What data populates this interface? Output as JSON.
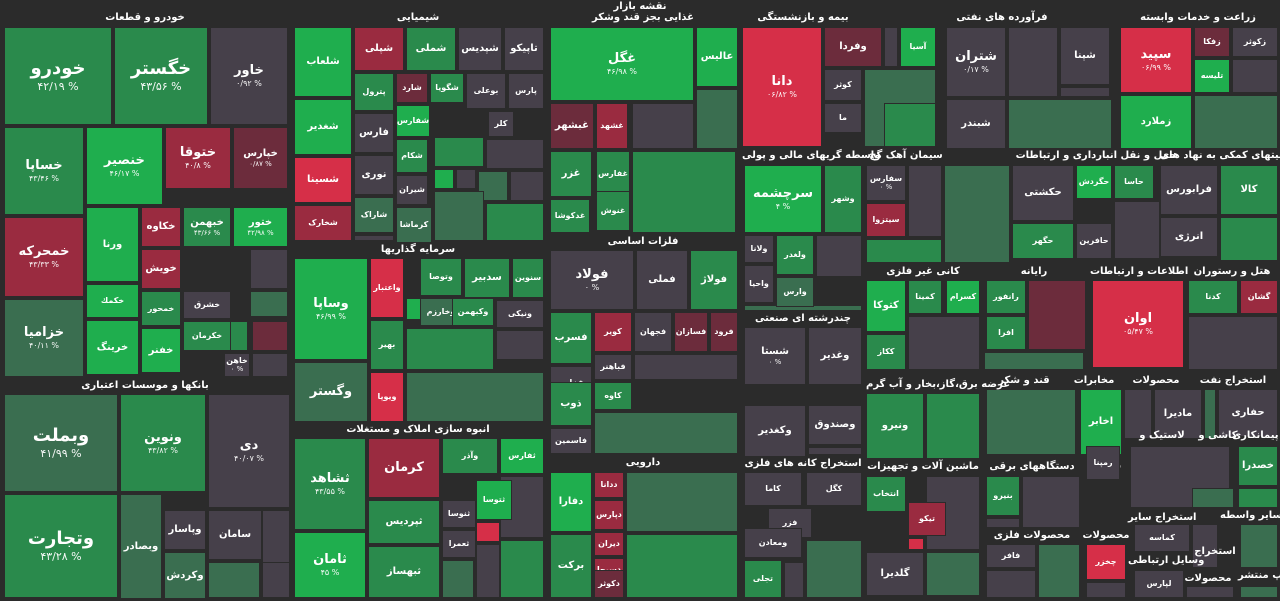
{
  "title": "نقشه بازار",
  "colors": {
    "strong_pos": "#1fae4e",
    "pos": "#2a8a4c",
    "mild_pos": "#3a6e50",
    "neutral": "#46404a",
    "mild_neg": "#6c2c3c",
    "neg": "#9a2b40",
    "strong_neg": "#d62f48",
    "background": "#2b2b2b"
  },
  "chart_data": {
    "type": "treemap",
    "title": "نقشه بازار",
    "sectors": [
      {
        "name": "خودرو و قطعات",
        "tiles": [
          {
            "n": "خودرو",
            "c": "۴۲/۱۹ %",
            "s": 2
          },
          {
            "n": "خگستر",
            "c": "۴۳/۵۶ %",
            "s": 2
          },
          {
            "n": "خاور",
            "c": "۰/۹۲ %",
            "s": 0
          },
          {
            "n": "خساپا",
            "c": "۴۳/۴۶ %",
            "s": 2
          },
          {
            "n": "خنصير",
            "c": "۴۶/۱۷ %",
            "s": 3
          },
          {
            "n": "ختوقا",
            "c": "۴۰/۸ %",
            "s": -2
          },
          {
            "n": "خپارس",
            "c": "۰/۸۷ %",
            "s": -1
          },
          {
            "n": "خمحركه",
            "c": "۴۳/۳۳ %",
            "s": -2
          },
          {
            "n": "ورنا",
            "c": "",
            "s": 3
          },
          {
            "n": "خكاوه",
            "c": "",
            "s": -2
          },
          {
            "n": "خبهمن",
            "c": "۴۳/۶۶ %",
            "s": 2
          },
          {
            "n": "ختور",
            "c": "۴۲/۹۸ %",
            "s": 3
          },
          {
            "n": "خويش",
            "c": "",
            "s": -2
          },
          {
            "n": "خزامیا",
            "c": "۴۰/۱۱ %",
            "s": 1
          },
          {
            "n": "خكمك",
            "c": "",
            "s": 3
          },
          {
            "n": "خرينگ",
            "c": "",
            "s": 3
          },
          {
            "n": "خمحور",
            "c": "",
            "s": 2
          },
          {
            "n": "خفنر",
            "c": "",
            "s": 3
          },
          {
            "n": "خشرق",
            "c": "",
            "s": 0
          },
          {
            "n": "خكرمان",
            "c": "",
            "s": 2
          },
          {
            "n": "خاهن",
            "c": "۰ %",
            "s": 0
          }
        ]
      },
      {
        "name": "بانکها و موسسات اعتباری",
        "tiles": [
          {
            "n": "وبملت",
            "c": "۴۱/۹۹ %",
            "s": 1
          },
          {
            "n": "ونوين",
            "c": "۴۳/۸۲ %",
            "s": 2
          },
          {
            "n": "دی",
            "c": "۴۰/۰۷ %",
            "s": 0
          },
          {
            "n": "وتجارت",
            "c": "۴۳/۲۸ %",
            "s": 2
          },
          {
            "n": "وبصادر",
            "c": "",
            "s": 1
          },
          {
            "n": "وپاسار",
            "c": "",
            "s": 0
          },
          {
            "n": "وكردش",
            "c": "",
            "s": 1
          },
          {
            "n": "سامان",
            "c": "",
            "s": 0
          }
        ]
      },
      {
        "name": "شیمیایی",
        "tiles": [
          {
            "n": "شلعاب",
            "c": "",
            "s": 3
          },
          {
            "n": "شپلی",
            "c": "",
            "s": -2
          },
          {
            "n": "شملی",
            "c": "",
            "s": 2
          },
          {
            "n": "شپديس",
            "c": "",
            "s": 0
          },
          {
            "n": "تاپيكو",
            "c": "",
            "s": 0
          },
          {
            "n": "پترول",
            "c": "",
            "s": 2
          },
          {
            "n": "شارد",
            "c": "",
            "s": -1
          },
          {
            "n": "شگويا",
            "c": "",
            "s": 2
          },
          {
            "n": "بوعلی",
            "c": "",
            "s": 0
          },
          {
            "n": "پارس",
            "c": "",
            "s": 0
          },
          {
            "n": "شغدير",
            "c": "",
            "s": 3
          },
          {
            "n": "شفارس",
            "c": "",
            "s": 3
          },
          {
            "n": "كلر",
            "c": "",
            "s": 0
          },
          {
            "n": "فارس",
            "c": "",
            "s": 0
          },
          {
            "n": "شسينا",
            "c": "",
            "s": -3
          },
          {
            "n": "شكام",
            "c": "",
            "s": 2
          },
          {
            "n": "نوری",
            "c": "",
            "s": 0
          },
          {
            "n": "شيران",
            "c": "",
            "s": 0
          },
          {
            "n": "شخارک",
            "c": "",
            "s": -2
          },
          {
            "n": "شاراک",
            "c": "",
            "s": 1
          },
          {
            "n": "كرماشا",
            "c": "",
            "s": 1
          }
        ]
      },
      {
        "name": "سرمایه گذاریها",
        "tiles": [
          {
            "n": "وساپا",
            "c": "۴۶/۹۹ %",
            "s": 3
          },
          {
            "n": "واعتبار",
            "c": "",
            "s": -3
          },
          {
            "n": "وتوصا",
            "c": "",
            "s": 2
          },
          {
            "n": "سدبير",
            "c": "",
            "s": 2
          },
          {
            "n": "سنوين",
            "c": "",
            "s": 2
          },
          {
            "n": "وخارزم",
            "c": "",
            "s": 1
          },
          {
            "n": "وكبهمن",
            "c": "",
            "s": 2
          },
          {
            "n": "ونيكی",
            "c": "",
            "s": 0
          },
          {
            "n": "بهير",
            "c": "",
            "s": 2
          },
          {
            "n": "وگستر",
            "c": "",
            "s": 1
          },
          {
            "n": "ويوپا",
            "c": "",
            "s": -3
          }
        ]
      },
      {
        "name": "انبوه سازی املاک و مستغلات",
        "tiles": [
          {
            "n": "ثشاهد",
            "c": "۴۳/۵۵ %",
            "s": 2
          },
          {
            "n": "كرمان",
            "c": "",
            "s": -2
          },
          {
            "n": "وآذر",
            "c": "",
            "s": 2
          },
          {
            "n": "ثفارس",
            "c": "",
            "s": 3
          },
          {
            "n": "ثپرديس",
            "c": "",
            "s": 2
          },
          {
            "n": "ثتوسا",
            "c": "",
            "s": 3
          },
          {
            "n": "ثنوسا",
            "c": "",
            "s": 0
          },
          {
            "n": "ثعمرا",
            "c": "",
            "s": 0
          },
          {
            "n": "ثامان",
            "c": "۴۵ %",
            "s": 3
          },
          {
            "n": "ثبهساز",
            "c": "",
            "s": 2
          }
        ]
      },
      {
        "name": "غذایی بجز قند وشکر",
        "tiles": [
          {
            "n": "غگل",
            "c": "۴۶/۹۸ %",
            "s": 3
          },
          {
            "n": "عاليس",
            "c": "",
            "s": 3
          },
          {
            "n": "غبشهر",
            "c": "",
            "s": -1
          },
          {
            "n": "غشهد",
            "c": "",
            "s": -2
          },
          {
            "n": "غزر",
            "c": "",
            "s": 2
          },
          {
            "n": "غفارس",
            "c": "",
            "s": 2
          },
          {
            "n": "غدكوشا",
            "c": "",
            "s": 2
          },
          {
            "n": "غنوش",
            "c": "",
            "s": 2
          }
        ]
      },
      {
        "name": "فلزات اساسی",
        "tiles": [
          {
            "n": "فولاد",
            "c": "۰ %",
            "s": 0
          },
          {
            "n": "فملی",
            "c": "",
            "s": 0
          },
          {
            "n": "فولاژ",
            "c": "",
            "s": 2
          },
          {
            "n": "فسرب",
            "c": "",
            "s": 2
          },
          {
            "n": "كوير",
            "c": "",
            "s": -2
          },
          {
            "n": "فجهان",
            "c": "",
            "s": 0
          },
          {
            "n": "فسازان",
            "c": "",
            "s": -1
          },
          {
            "n": "فرود",
            "c": "",
            "s": -1
          },
          {
            "n": "فباهنر",
            "c": "",
            "s": 0
          },
          {
            "n": "فخاس",
            "c": "",
            "s": 0
          },
          {
            "n": "ذوب",
            "c": "",
            "s": 2
          },
          {
            "n": "كاوه",
            "c": "",
            "s": 2
          },
          {
            "n": "فاسمين",
            "c": "",
            "s": 0
          }
        ]
      },
      {
        "name": "دارویی",
        "tiles": [
          {
            "n": "دفارا",
            "c": "",
            "s": 3
          },
          {
            "n": "ددانا",
            "c": "",
            "s": -2
          },
          {
            "n": "دپارس",
            "c": "",
            "s": -2
          },
          {
            "n": "ديران",
            "c": "",
            "s": -2
          },
          {
            "n": "دسبحا",
            "c": "",
            "s": -2
          },
          {
            "n": "بركت",
            "c": "",
            "s": 2
          },
          {
            "n": "دكوثر",
            "c": "",
            "s": -1
          }
        ]
      },
      {
        "name": "بیمه و بازنشستگی",
        "tiles": [
          {
            "n": "دانا",
            "c": "۰۶/۸۲ %",
            "s": -3
          },
          {
            "n": "وفردا",
            "c": "",
            "s": -1
          },
          {
            "n": "آسيا",
            "c": "",
            "s": 3
          },
          {
            "n": "كوثر",
            "c": "",
            "s": 0
          },
          {
            "n": "ما",
            "c": "",
            "s": 0
          }
        ]
      },
      {
        "name": "واسطه گریهای مالی و پولی",
        "tiles": [
          {
            "n": "سرچشمه",
            "c": "۴ %",
            "s": 3
          },
          {
            "n": "وشهر",
            "c": "",
            "s": 2
          },
          {
            "n": "ولانا",
            "c": "",
            "s": 0
          },
          {
            "n": "ولغدر",
            "c": "",
            "s": 2
          },
          {
            "n": "واحيا",
            "c": "",
            "s": 0
          },
          {
            "n": "وارس",
            "c": "",
            "s": 1
          }
        ]
      },
      {
        "name": "سیمان آهک گچ",
        "tiles": [
          {
            "n": "سفارس",
            "c": "۰ %",
            "s": 0
          },
          {
            "n": "سيتزوا",
            "c": "",
            "s": -2
          }
        ]
      },
      {
        "name": "فرآورده های نفتی",
        "tiles": [
          {
            "n": "شتران",
            "c": "۰/۱۷ %",
            "s": 0
          },
          {
            "n": "شپنا",
            "c": "",
            "s": 0
          },
          {
            "n": "شبندر",
            "c": "",
            "s": 0
          }
        ]
      },
      {
        "name": "زراعت و خدمات وابسته",
        "tiles": [
          {
            "n": "سپيد",
            "c": "۰۶/۹۹ %",
            "s": -3
          },
          {
            "n": "زفكا",
            "c": "",
            "s": -1
          },
          {
            "n": "زكوثر",
            "c": "",
            "s": 0
          },
          {
            "n": "زملارد",
            "c": "",
            "s": 3
          },
          {
            "n": "تليسه",
            "c": "",
            "s": 3
          }
        ]
      },
      {
        "name": "حمل و نقل انبارداری و ارتباطات",
        "tiles": [
          {
            "n": "حكشتی",
            "c": "",
            "s": 0
          },
          {
            "n": "حگردش",
            "c": "",
            "s": 3
          },
          {
            "n": "حاسا",
            "c": "",
            "s": 2
          },
          {
            "n": "حگهر",
            "c": "",
            "s": 2
          },
          {
            "n": "حافرين",
            "c": "",
            "s": 0
          }
        ]
      },
      {
        "name": "فعالیتهای کمکی به نهاد های",
        "tiles": [
          {
            "n": "فرابورس",
            "c": "",
            "s": 0
          },
          {
            "n": "كالا",
            "c": "",
            "s": 2
          },
          {
            "n": "انرژی",
            "c": "",
            "s": 0
          }
        ]
      },
      {
        "name": "کانی غیر فلزی",
        "tiles": [
          {
            "n": "كتوكا",
            "c": "",
            "s": 3
          },
          {
            "n": "كمينا",
            "c": "",
            "s": 2
          },
          {
            "n": "كسرام",
            "c": "",
            "s": 3
          },
          {
            "n": "ككاز",
            "c": "",
            "s": 2
          }
        ]
      },
      {
        "name": "رایانه",
        "tiles": [
          {
            "n": "رانفور",
            "c": "",
            "s": 2
          },
          {
            "n": "افرا",
            "c": "",
            "s": 2
          }
        ]
      },
      {
        "name": "اطلاعات و ارتباطات",
        "tiles": [
          {
            "n": "اوان",
            "c": "۰۵/۴۷ %",
            "s": -3
          }
        ]
      },
      {
        "name": "هتل و رستوران",
        "tiles": [
          {
            "n": "كدنا",
            "c": "",
            "s": 2
          },
          {
            "n": "گشان",
            "c": "",
            "s": -2
          }
        ]
      },
      {
        "name": "چندرشته ای صنعتی",
        "tiles": [
          {
            "n": "شستا",
            "c": "۰ %",
            "s": 0
          },
          {
            "n": "وغدير",
            "c": "",
            "s": 0
          },
          {
            "n": "وكغدير",
            "c": "",
            "s": 0
          },
          {
            "n": "وصندوق",
            "c": "",
            "s": 0
          }
        ]
      },
      {
        "name": "عرضه برق،گاز،بخار و آب گرم",
        "tiles": [
          {
            "n": "ونيرو",
            "c": "",
            "s": 2
          }
        ]
      },
      {
        "name": "قند و شکر",
        "tiles": []
      },
      {
        "name": "مخابرات",
        "tiles": [
          {
            "n": "اخابر",
            "c": "",
            "s": 3
          }
        ]
      },
      {
        "name": "محصولات",
        "tiles": [
          {
            "n": "مادیرا",
            "c": "",
            "s": 0
          }
        ]
      },
      {
        "name": "استخراج نفت",
        "tiles": [
          {
            "n": "حفاری",
            "c": "",
            "s": 0
          }
        ]
      },
      {
        "name": "استخراج کانه های فلزی",
        "tiles": [
          {
            "n": "كاما",
            "c": "",
            "s": 0
          },
          {
            "n": "كگل",
            "c": "",
            "s": 0
          },
          {
            "n": "فزر",
            "c": "",
            "s": 0
          },
          {
            "n": "ومعادن",
            "c": "",
            "s": 0
          },
          {
            "n": "تجلی",
            "c": "",
            "s": 2
          }
        ]
      },
      {
        "name": "ماشین آلات و تجهیزات",
        "tiles": [
          {
            "n": "انتخاب",
            "c": "",
            "s": 2
          },
          {
            "n": "تيكو",
            "c": "",
            "s": -2
          },
          {
            "n": "گلدیرا",
            "c": "",
            "s": 0
          }
        ]
      },
      {
        "name": "دستگاههای برقی",
        "tiles": [
          {
            "n": "بنيرو",
            "c": "",
            "s": 2
          }
        ]
      },
      {
        "name": "فنی و",
        "tiles": [
          {
            "n": "رمپنا",
            "c": "",
            "s": 0
          }
        ]
      },
      {
        "name": "لاستیک و",
        "tiles": []
      },
      {
        "name": "کاشی و",
        "tiles": []
      },
      {
        "name": "پیمانکاری",
        "tiles": [
          {
            "n": "خصدرا",
            "c": "",
            "s": 2
          }
        ]
      },
      {
        "name": "محصولات فلزی",
        "tiles": [
          {
            "n": "فافر",
            "c": "",
            "s": 0
          }
        ]
      },
      {
        "name": "محصولات",
        "tiles": [
          {
            "n": "چخزر",
            "c": "",
            "s": -3
          }
        ]
      },
      {
        "name": "استخراج سایر",
        "tiles": [
          {
            "n": "كماسه",
            "c": "",
            "s": 0
          }
        ]
      },
      {
        "name": "سایر واسطه",
        "tiles": []
      },
      {
        "name": "وسایل ارتباطی",
        "tiles": [
          {
            "n": "لپارس",
            "c": "",
            "s": 0
          }
        ]
      },
      {
        "name": "استخراج",
        "tiles": []
      },
      {
        "name": "محصولات",
        "tiles": []
      },
      {
        "name": "چاپ منتشر",
        "tiles": []
      }
    ]
  }
}
